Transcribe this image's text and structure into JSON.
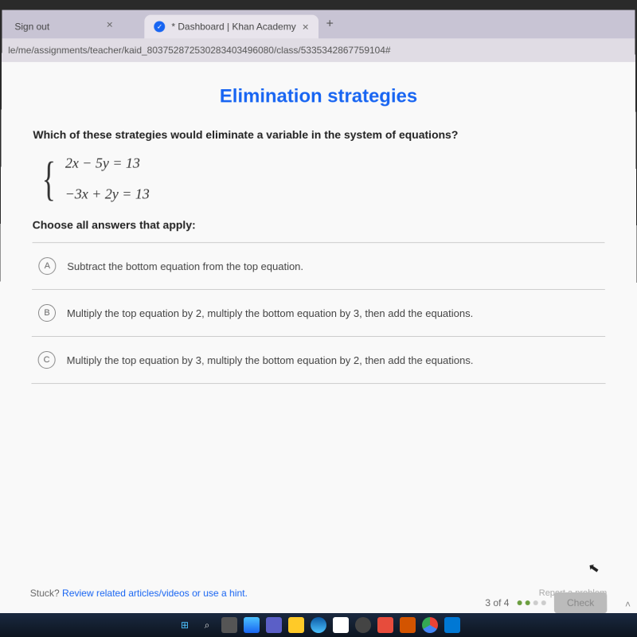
{
  "tabs": {
    "inactive": {
      "label": "Sign out"
    },
    "active": {
      "label": "* Dashboard | Khan Academy"
    }
  },
  "url": "le/me/assignments/teacher/kaid_803752872530283403496080/class/5335342867759104#",
  "page": {
    "title": "Elimination strategies",
    "question": "Which of these strategies would eliminate a variable in the system of equations?",
    "eq1": "2x − 5y = 13",
    "eq2": "−3x + 2y = 13",
    "instruction": "Choose all answers that apply:"
  },
  "answers": [
    {
      "letter": "A",
      "text": "Subtract the bottom equation from the top equation."
    },
    {
      "letter": "B",
      "text": "Multiply the top equation by 2, multiply the bottom equation by 3, then add the equations."
    },
    {
      "letter": "C",
      "text": "Multiply the top equation by 3, multiply the bottom equation by 2, then add the equations."
    }
  ],
  "footer": {
    "stuck_prefix": "Stuck? ",
    "stuck_link": "Review related articles/videos or use a hint.",
    "report": "Report a problem",
    "progress": "3 of 4",
    "check": "Check"
  },
  "colors": {
    "primary": "#1865f2",
    "bg": "#f9f9f9"
  }
}
